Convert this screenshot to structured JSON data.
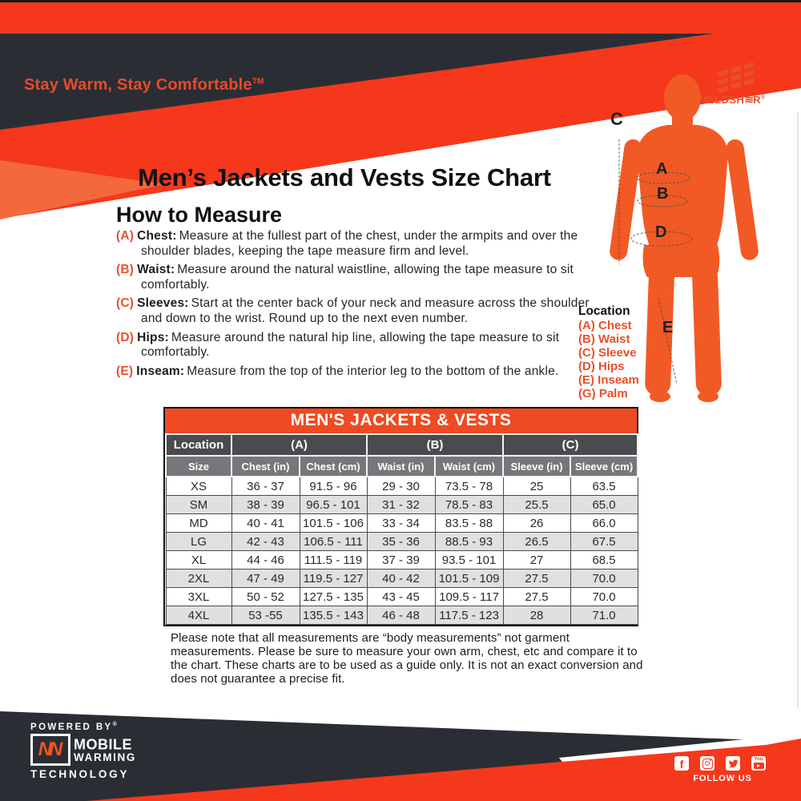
{
  "brand": {
    "tagline": "Stay Warm, Stay Comfortable",
    "tagline_tm": "TM",
    "logo": {
      "prefix": "FIELDSH",
      "wave": "≋",
      "suffix": "R",
      "reg": "®"
    }
  },
  "page": {
    "title": "Men’s Jackets and Vests Size Chart",
    "how_to_measure": {
      "heading": "How to Measure",
      "items": [
        {
          "label": "(A)",
          "term": "Chest:",
          "text": "Measure at the fullest part of the chest, under the armpits and over the shoulder blades, keeping the tape measure firm and level."
        },
        {
          "label": "(B)",
          "term": "Waist:",
          "text": "Measure around the natural waistline, allowing the tape measure to sit comfortably."
        },
        {
          "label": "(C)",
          "term": "Sleeves:",
          "text": "Start at the center back of your neck and measure across the shoulder and down to the wrist. Round up to the next even number."
        },
        {
          "label": "(D)",
          "term": "Hips:",
          "text": "Measure around the natural hip line, allowing the tape measure to sit comfortably."
        },
        {
          "label": "(E)",
          "term": "Inseam:",
          "text": "Measure from the top of the interior leg to the bottom of the ankle."
        }
      ]
    },
    "location_legend": {
      "heading": "Location",
      "items": [
        "(A) Chest",
        "(B) Waist",
        "(C) Sleeve",
        "(D) Hips",
        "(E) Inseam",
        "(G) Palm"
      ]
    },
    "figure_markers": [
      "C",
      "A",
      "B",
      "D",
      "E"
    ],
    "table": {
      "title": "MEN'S JACKETS & VESTS",
      "group_header": [
        "Location",
        "(A)",
        "(B)",
        "(C)"
      ],
      "columns": [
        "Size",
        "Chest (in)",
        "Chest (cm)",
        "Waist (in)",
        "Waist (cm)",
        "Sleeve (in)",
        "Sleeve (cm)"
      ],
      "rows": [
        [
          "XS",
          "36 - 37",
          "91.5 - 96",
          "29 - 30",
          "73.5 - 78",
          "25",
          "63.5"
        ],
        [
          "SM",
          "38 - 39",
          "96.5 - 101",
          "31 - 32",
          "78.5 - 83",
          "25.5",
          "65.0"
        ],
        [
          "MD",
          "40 - 41",
          "101.5 - 106",
          "33 - 34",
          "83.5 - 88",
          "26",
          "66.0"
        ],
        [
          "LG",
          "42 - 43",
          "106.5 - 111",
          "35 - 36",
          "88.5 - 93",
          "26.5",
          "67.5"
        ],
        [
          "XL",
          "44 - 46",
          "111.5 - 119",
          "37 - 39",
          "93.5 - 101",
          "27",
          "68.5"
        ],
        [
          "2XL",
          "47 - 49",
          "119.5 - 127",
          "40 - 42",
          "101.5 - 109",
          "27.5",
          "70.0"
        ],
        [
          "3XL",
          "50 - 52",
          "127.5 - 135",
          "43 - 45",
          "109.5 - 117",
          "27.5",
          "70.0"
        ],
        [
          "4XL",
          "53 -55",
          "135.5 - 143",
          "46 - 48",
          "117.5 - 123",
          "28",
          "71.0"
        ]
      ]
    },
    "note": "Please note that all measurements are “body measurements” not garment measurements. Please be sure to measure your own arm, chest, etc and compare it to the chart. These charts are to be used as a guide only. It is not an exact conversion and does not guarantee a precise fit."
  },
  "footer": {
    "powered_by": "POWERED BY",
    "powered_by_reg": "®",
    "logo_nn": "NN",
    "logo_line1": "MOBILE",
    "logo_line2": "WARMING",
    "logo_line3": "TECHNOLOGY",
    "follow_us": "FOLLOW US",
    "social_icons": [
      "facebook-icon",
      "instagram-icon",
      "twitter-icon",
      "youtube-icon"
    ]
  },
  "colors": {
    "accent_red": "#f5381c",
    "accent_orange": "#e8512b",
    "figure_orange": "#f15a25",
    "charcoal": "#2a2e34",
    "table_title_bg": "#ef4a21",
    "header_dark_gray": "#4a4b4e",
    "header_mid_gray": "#76777a",
    "row_alt_gray": "#e0e0e0"
  }
}
